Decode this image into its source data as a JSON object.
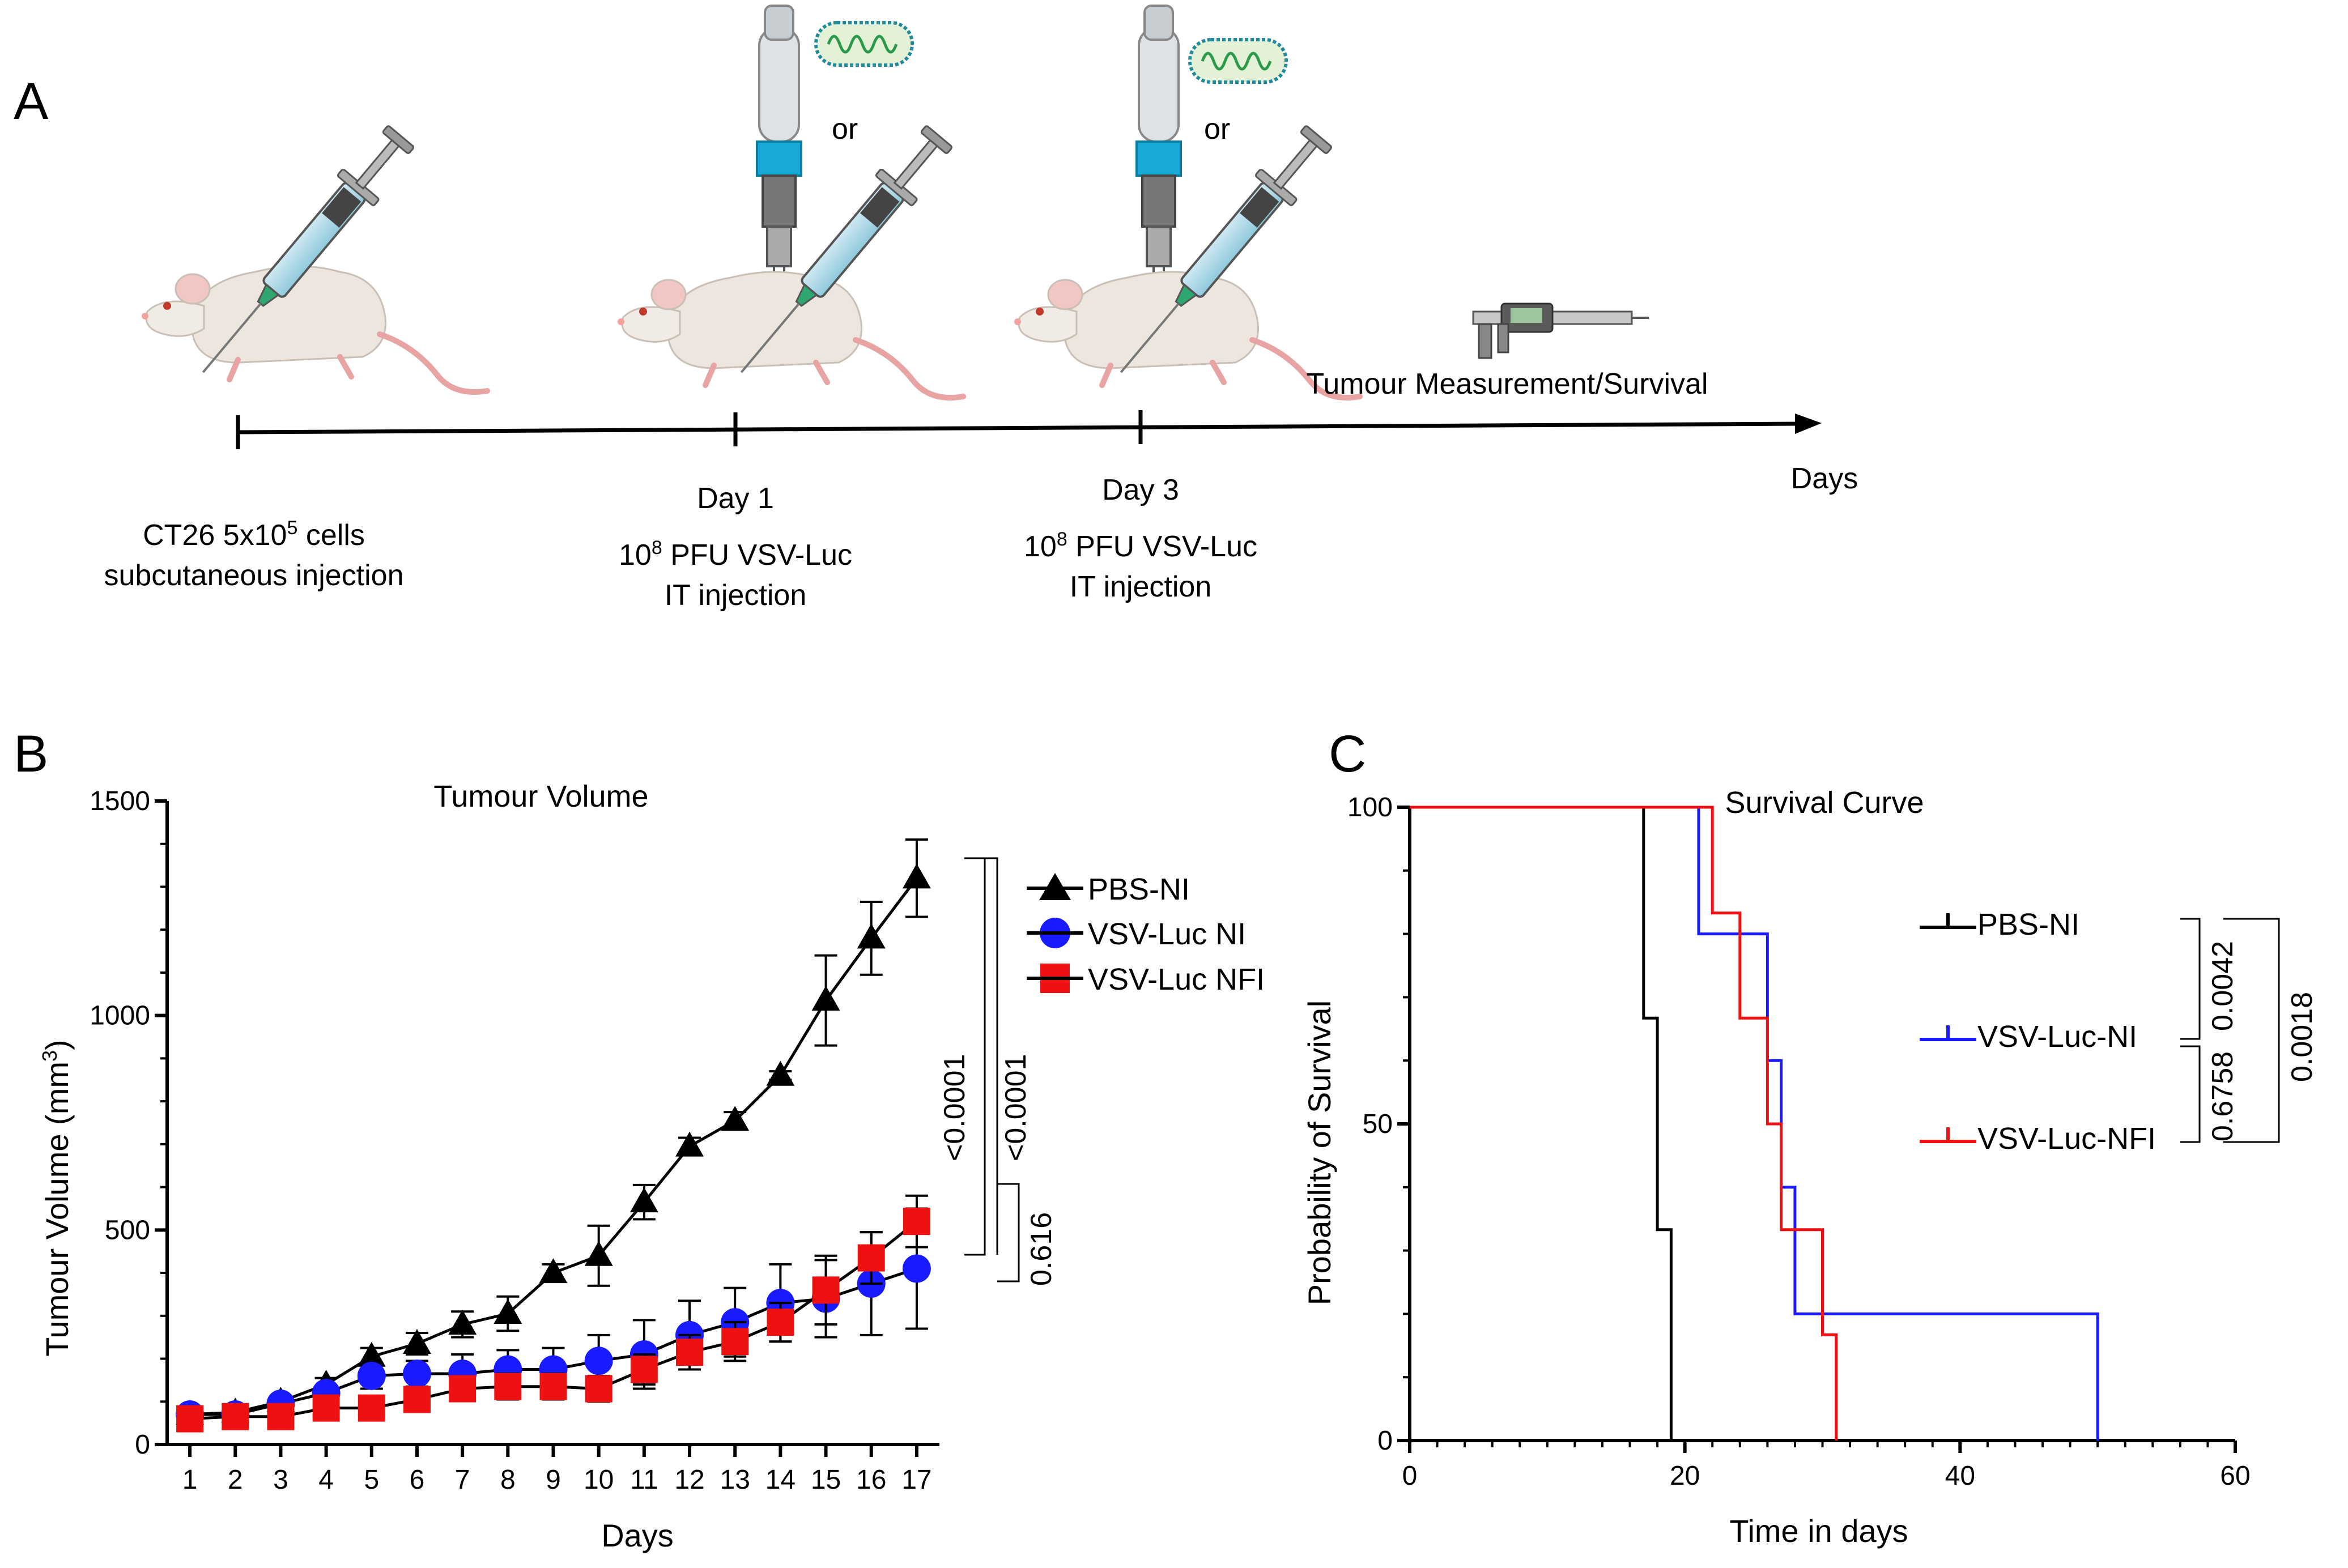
{
  "panel_a": {
    "letter": "A",
    "or_label": "or",
    "axis_label": "Days",
    "steps": [
      {
        "line1": "",
        "line2": "CT26 5x10",
        "sup": "5",
        "line2_after": " cells",
        "line3": "subcutaneous injection"
      },
      {
        "line1": "Day 1",
        "line2": "10",
        "sup": "8",
        "line2_after": " PFU VSV-Luc",
        "line3": "IT injection"
      },
      {
        "line1": "Day 3",
        "line2": "10",
        "sup": "8",
        "line2_after": " PFU VSV-Luc",
        "line3": "IT injection"
      }
    ],
    "measurement_label": "Tumour Measurement/Survival",
    "icons": [
      "mouse-icon",
      "syringe-icon",
      "electroporator-icon",
      "virus-icon",
      "caliper-icon"
    ]
  },
  "colors": {
    "black": "#000000",
    "blue": "#1a1aff",
    "red": "#ee1111"
  },
  "chart_data": [
    {
      "id": "B",
      "letter": "B",
      "type": "line",
      "title": "Tumour Volume",
      "xlabel": "Days",
      "ylabel_prefix": "Tumour Volume (mm",
      "ylabel_sup": "3",
      "ylabel_suffix": ")",
      "x": [
        1,
        2,
        3,
        4,
        5,
        6,
        7,
        8,
        9,
        10,
        11,
        12,
        13,
        14,
        15,
        16,
        17
      ],
      "xlim": [
        0.5,
        17.5
      ],
      "ylim": [
        0,
        1500
      ],
      "yticks": [
        0,
        500,
        1000,
        1500
      ],
      "series": [
        {
          "name": "PBS-NI",
          "color": "#000000",
          "marker": "triangle",
          "values": [
            70,
            75,
            100,
            140,
            205,
            235,
            280,
            305,
            400,
            440,
            565,
            695,
            755,
            860,
            1035,
            1180,
            1320
          ],
          "errors": [
            10,
            10,
            12,
            15,
            20,
            25,
            30,
            40,
            20,
            70,
            40,
            20,
            20,
            10,
            105,
            85,
            90
          ]
        },
        {
          "name": "VSV-Luc NI",
          "color": "#1a1aff",
          "marker": "circle",
          "values": [
            70,
            70,
            95,
            120,
            160,
            165,
            165,
            175,
            175,
            195,
            210,
            255,
            285,
            330,
            340,
            375,
            410
          ],
          "errors": [
            10,
            10,
            10,
            15,
            30,
            30,
            45,
            45,
            50,
            60,
            80,
            80,
            80,
            90,
            90,
            120,
            140
          ]
        },
        {
          "name": "VSV-Luc NFI",
          "color": "#ee1111",
          "marker": "square",
          "values": [
            60,
            65,
            65,
            85,
            85,
            105,
            130,
            135,
            135,
            130,
            175,
            215,
            240,
            285,
            360,
            435,
            520
          ],
          "errors": [
            10,
            10,
            10,
            15,
            15,
            20,
            25,
            30,
            30,
            30,
            35,
            40,
            45,
            45,
            80,
            60,
            60
          ]
        }
      ],
      "pvalues": [
        "<0.0001",
        "<0.0001",
        "0.616"
      ]
    },
    {
      "id": "C",
      "letter": "C",
      "type": "line",
      "subtype": "step",
      "title": "Survival Curve",
      "xlabel": "Time in days",
      "ylabel": "Probability of Survival",
      "xlim": [
        0,
        60
      ],
      "ylim": [
        0,
        100
      ],
      "xticks": [
        0,
        20,
        40,
        60
      ],
      "yticks": [
        0,
        50,
        100
      ],
      "series": [
        {
          "name": "PBS-NI",
          "color": "#000000",
          "steps": [
            [
              0,
              100
            ],
            [
              17,
              100
            ],
            [
              17,
              66.7
            ],
            [
              18,
              66.7
            ],
            [
              18,
              33.3
            ],
            [
              19,
              33.3
            ],
            [
              19,
              0
            ]
          ]
        },
        {
          "name": "VSV-Luc-NI",
          "color": "#1a1aff",
          "steps": [
            [
              0,
              100
            ],
            [
              21,
              100
            ],
            [
              21,
              80
            ],
            [
              26,
              80
            ],
            [
              26,
              60
            ],
            [
              27,
              60
            ],
            [
              27,
              40
            ],
            [
              28,
              40
            ],
            [
              28,
              20
            ],
            [
              50,
              20
            ],
            [
              50,
              0
            ]
          ]
        },
        {
          "name": "VSV-Luc-NFI",
          "color": "#ee1111",
          "steps": [
            [
              0,
              100
            ],
            [
              22,
              100
            ],
            [
              22,
              83.3
            ],
            [
              24,
              83.3
            ],
            [
              24,
              66.7
            ],
            [
              26,
              66.7
            ],
            [
              26,
              50
            ],
            [
              27,
              50
            ],
            [
              27,
              33.3
            ],
            [
              30,
              33.3
            ],
            [
              30,
              16.7
            ],
            [
              31,
              16.7
            ],
            [
              31,
              0
            ]
          ]
        }
      ],
      "pvalues": [
        "0.0042",
        "0.6758",
        "0.0018"
      ]
    }
  ]
}
